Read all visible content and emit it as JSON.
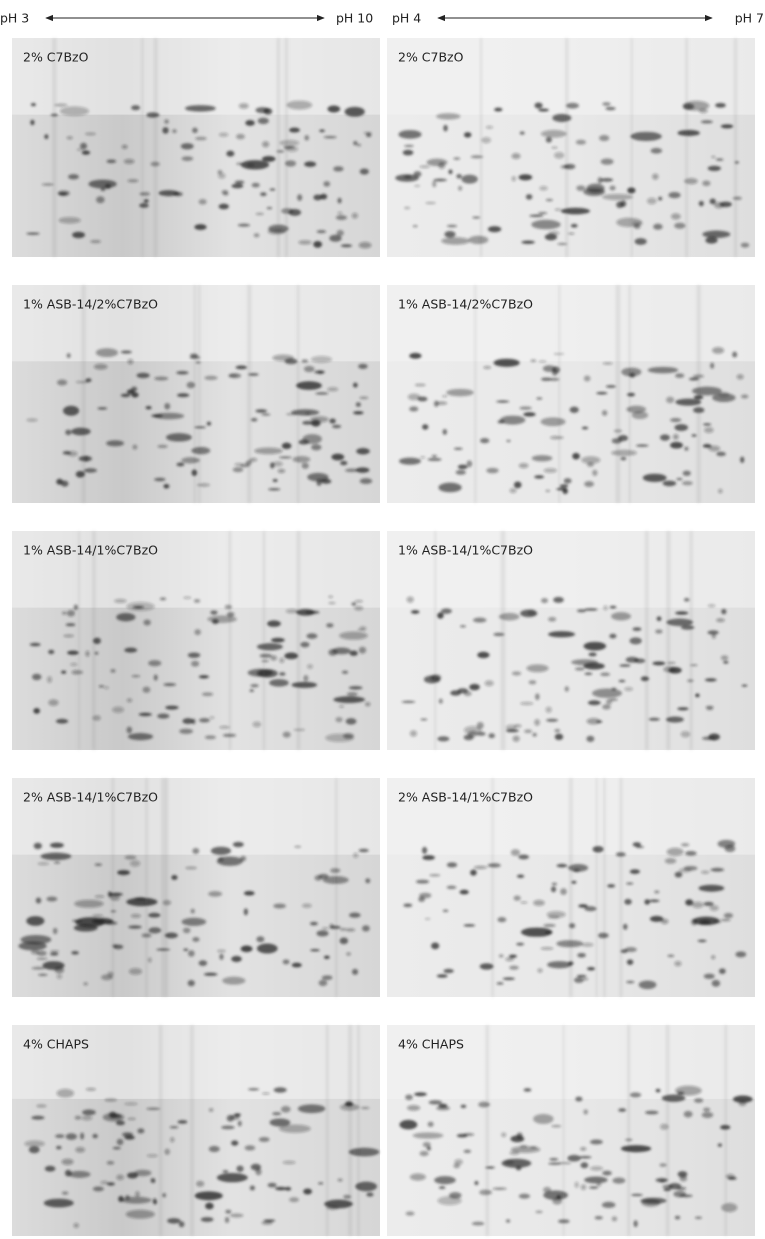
{
  "header": [
    {
      "left": "pH 3",
      "right": "pH 10"
    },
    {
      "left": "pH 4",
      "right": "pH 7"
    }
  ],
  "panels": [
    [
      "2% C7BzO",
      "2% C7BzO"
    ],
    [
      "1% ASB-14/2%C7BzO",
      "1% ASB-14/2%C7BzO"
    ],
    [
      "1% ASB-14/1%C7BzO",
      "1% ASB-14/1%C7BzO"
    ],
    [
      "2% ASB-14/1%C7BzO",
      "2% ASB-14/1%C7BzO"
    ],
    [
      "4% CHAPS",
      "4% CHAPS"
    ]
  ]
}
